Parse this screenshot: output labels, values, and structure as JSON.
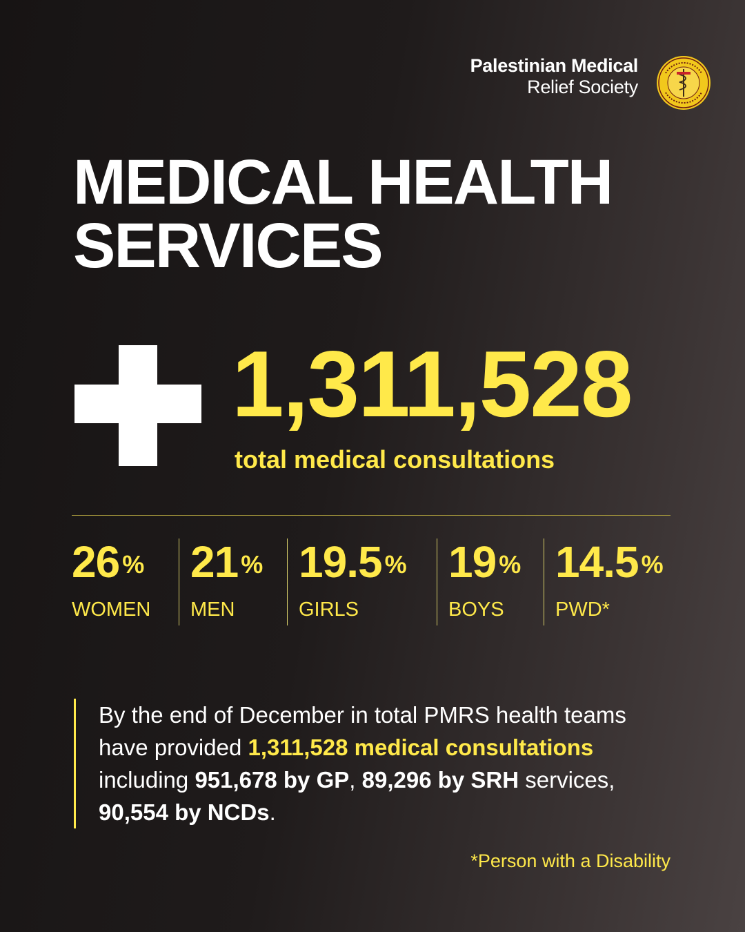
{
  "colors": {
    "accent": "#ffe94a",
    "background": "#1d1919",
    "text": "#ffffff"
  },
  "header": {
    "org_name_line1": "Palestinian Medical",
    "org_name_line2": "Relief Society",
    "logo_icon": "pmrs-seal-logo"
  },
  "title": {
    "line1": "MEDICAL HEALTH",
    "line2": "SERVICES"
  },
  "hero": {
    "icon": "medical-cross-icon",
    "total": "1,311,528",
    "caption": "total medical consultations"
  },
  "stats": [
    {
      "value": "26",
      "unit": "%",
      "label": "WOMEN"
    },
    {
      "value": "21",
      "unit": "%",
      "label": "MEN"
    },
    {
      "value": "19.5",
      "unit": "%",
      "label": "GIRLS"
    },
    {
      "value": "19",
      "unit": "%",
      "label": "BOYS"
    },
    {
      "value": "14.5",
      "unit": "%",
      "label": "PWD*"
    }
  ],
  "summary": {
    "t1": "By the end of December in total PMRS health teams have provided ",
    "h1": "1,311,528 medical consultations",
    "t2": " including ",
    "b1": "951,678 by GP",
    "t3": ", ",
    "b2": "89,296 by SRH",
    "t4": " services, ",
    "b3": "90,554 by NCDs",
    "t5": "."
  },
  "footnote": "*Person with a Disability"
}
